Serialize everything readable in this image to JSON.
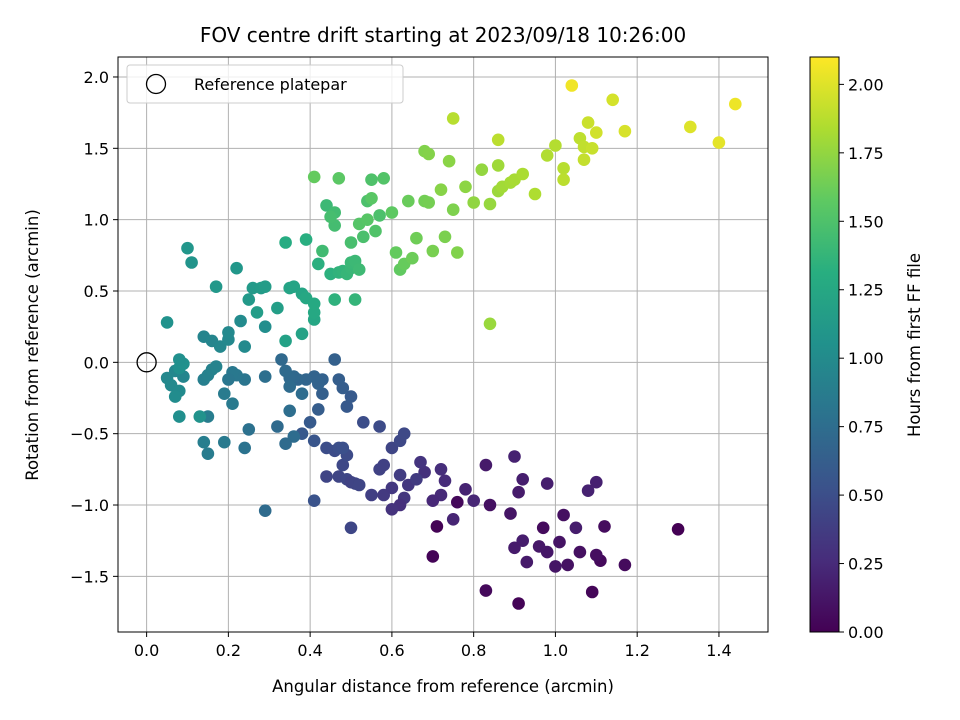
{
  "chart_data": {
    "type": "scatter",
    "title": "FOV centre drift starting at 2023/09/18 10:26:00",
    "xlabel": "Angular distance from reference (arcmin)",
    "ylabel": "Rotation from reference (arcmin)",
    "xlim": [
      -0.07,
      1.52
    ],
    "ylim": [
      -1.89,
      2.14
    ],
    "x_ticks": [
      0.0,
      0.2,
      0.4,
      0.6,
      0.8,
      1.0,
      1.2,
      1.4
    ],
    "x_tick_labels": [
      "0.0",
      "0.2",
      "0.4",
      "0.6",
      "0.8",
      "1.0",
      "1.2",
      "1.4"
    ],
    "y_ticks": [
      -1.5,
      -1.0,
      -0.5,
      0.0,
      0.5,
      1.0,
      1.5,
      2.0
    ],
    "y_tick_labels": [
      "−1.5",
      "−1.0",
      "−0.5",
      "0.0",
      "0.5",
      "1.0",
      "1.5",
      "2.0"
    ],
    "grid": true,
    "legend": {
      "position": "top-left",
      "entries": [
        "Reference platepar"
      ]
    },
    "reference_point": {
      "x": 0.0,
      "y": 0.0
    },
    "colorbar": {
      "label": "Hours from first FF file",
      "colormap": "viridis",
      "range": [
        0.0,
        2.1
      ],
      "ticks": [
        0.0,
        0.25,
        0.5,
        0.75,
        1.0,
        1.25,
        1.5,
        1.75,
        2.0
      ],
      "tick_labels": [
        "0.00",
        "0.25",
        "0.50",
        "0.75",
        "1.00",
        "1.25",
        "1.50",
        "1.75",
        "2.00"
      ]
    },
    "points": [
      [
        1.3,
        -1.17,
        0.0
      ],
      [
        0.91,
        -1.69,
        0.02
      ],
      [
        1.09,
        -1.61,
        0.03
      ],
      [
        0.83,
        -1.6,
        0.05
      ],
      [
        0.7,
        -1.36,
        0.02
      ],
      [
        0.71,
        -1.15,
        0.01
      ],
      [
        0.76,
        -0.98,
        0.04
      ],
      [
        1.17,
        -1.42,
        0.06
      ],
      [
        1.11,
        -1.39,
        0.05
      ],
      [
        1.1,
        -1.35,
        0.08
      ],
      [
        1.12,
        -1.15,
        0.07
      ],
      [
        1.06,
        -1.33,
        0.09
      ],
      [
        1.03,
        -1.42,
        0.1
      ],
      [
        1.0,
        -1.43,
        0.12
      ],
      [
        0.97,
        -1.16,
        0.06
      ],
      [
        1.01,
        -1.26,
        0.11
      ],
      [
        1.02,
        -1.07,
        0.09
      ],
      [
        0.98,
        -1.33,
        0.13
      ],
      [
        0.96,
        -1.29,
        0.14
      ],
      [
        0.93,
        -1.4,
        0.15
      ],
      [
        0.92,
        -1.25,
        0.17
      ],
      [
        0.9,
        -1.3,
        0.16
      ],
      [
        0.89,
        -1.06,
        0.12
      ],
      [
        0.84,
        -1.0,
        0.1
      ],
      [
        0.83,
        -0.72,
        0.15
      ],
      [
        0.91,
        -0.91,
        0.16
      ],
      [
        0.92,
        -0.82,
        0.18
      ],
      [
        0.9,
        -0.66,
        0.2
      ],
      [
        0.98,
        -0.85,
        0.18
      ],
      [
        1.08,
        -0.9,
        0.2
      ],
      [
        1.1,
        -0.84,
        0.19
      ],
      [
        1.05,
        -1.16,
        0.17
      ],
      [
        0.78,
        -0.89,
        0.21
      ],
      [
        0.8,
        -0.97,
        0.23
      ],
      [
        0.75,
        -1.1,
        0.22
      ],
      [
        0.72,
        -0.93,
        0.25
      ],
      [
        0.72,
        -0.75,
        0.28
      ],
      [
        0.73,
        -0.83,
        0.26
      ],
      [
        0.7,
        -0.97,
        0.24
      ],
      [
        0.68,
        -0.77,
        0.3
      ],
      [
        0.67,
        -0.7,
        0.32
      ],
      [
        0.64,
        -0.86,
        0.34
      ],
      [
        0.63,
        -0.95,
        0.33
      ],
      [
        0.62,
        -1.0,
        0.29
      ],
      [
        0.6,
        -1.03,
        0.31
      ],
      [
        0.58,
        -0.93,
        0.36
      ],
      [
        0.6,
        -0.88,
        0.35
      ],
      [
        0.66,
        -0.82,
        0.37
      ],
      [
        0.62,
        -0.79,
        0.38
      ],
      [
        0.55,
        -0.93,
        0.4
      ],
      [
        0.57,
        -0.75,
        0.42
      ],
      [
        0.58,
        -0.72,
        0.41
      ],
      [
        0.6,
        -0.6,
        0.44
      ],
      [
        0.62,
        -0.55,
        0.46
      ],
      [
        0.63,
        -0.5,
        0.47
      ],
      [
        0.57,
        -0.45,
        0.48
      ],
      [
        0.53,
        -0.42,
        0.5
      ],
      [
        0.5,
        -1.16,
        0.45
      ],
      [
        0.44,
        -0.8,
        0.43
      ],
      [
        0.47,
        -0.8,
        0.44
      ],
      [
        0.49,
        -0.82,
        0.45
      ],
      [
        0.5,
        -0.84,
        0.42
      ],
      [
        0.51,
        -0.85,
        0.43
      ],
      [
        0.52,
        -0.86,
        0.44
      ],
      [
        0.48,
        -0.72,
        0.46
      ],
      [
        0.49,
        -0.65,
        0.48
      ],
      [
        0.46,
        -0.62,
        0.49
      ],
      [
        0.44,
        -0.6,
        0.5
      ],
      [
        0.47,
        -0.6,
        0.51
      ],
      [
        0.48,
        -0.6,
        0.52
      ],
      [
        0.41,
        -0.55,
        0.56
      ],
      [
        0.41,
        -0.97,
        0.54
      ],
      [
        0.38,
        -0.5,
        0.58
      ],
      [
        0.4,
        -0.42,
        0.6
      ],
      [
        0.42,
        -0.33,
        0.62
      ],
      [
        0.43,
        -0.22,
        0.64
      ],
      [
        0.49,
        -0.31,
        0.59
      ],
      [
        0.5,
        -0.24,
        0.6
      ],
      [
        0.48,
        -0.18,
        0.62
      ],
      [
        0.47,
        -0.12,
        0.63
      ],
      [
        0.46,
        0.02,
        0.65
      ],
      [
        0.43,
        -0.12,
        0.66
      ],
      [
        0.42,
        -0.15,
        0.67
      ],
      [
        0.41,
        -0.1,
        0.68
      ],
      [
        0.39,
        -0.12,
        0.69
      ],
      [
        0.37,
        -0.12,
        0.7
      ],
      [
        0.36,
        -0.1,
        0.71
      ],
      [
        0.35,
        -0.11,
        0.72
      ],
      [
        0.34,
        -0.06,
        0.73
      ],
      [
        0.33,
        0.02,
        0.72
      ],
      [
        0.35,
        -0.17,
        0.74
      ],
      [
        0.38,
        -0.22,
        0.75
      ],
      [
        0.35,
        -0.34,
        0.76
      ],
      [
        0.36,
        -0.52,
        0.75
      ],
      [
        0.34,
        -0.57,
        0.74
      ],
      [
        0.32,
        -0.45,
        0.73
      ],
      [
        0.29,
        -0.1,
        0.77
      ],
      [
        0.29,
        -1.04,
        0.74
      ],
      [
        0.25,
        -0.47,
        0.79
      ],
      [
        0.24,
        -0.6,
        0.8
      ],
      [
        0.24,
        -0.12,
        0.82
      ],
      [
        0.22,
        -0.09,
        0.84
      ],
      [
        0.21,
        -0.07,
        0.85
      ],
      [
        0.2,
        -0.12,
        0.83
      ],
      [
        0.21,
        -0.29,
        0.86
      ],
      [
        0.19,
        -0.22,
        0.87
      ],
      [
        0.19,
        -0.56,
        0.86
      ],
      [
        0.15,
        -0.64,
        0.88
      ],
      [
        0.14,
        -0.56,
        0.9
      ],
      [
        0.15,
        -0.38,
        0.89
      ],
      [
        0.14,
        -0.12,
        0.91
      ],
      [
        0.15,
        -0.09,
        0.92
      ],
      [
        0.16,
        -0.05,
        0.93
      ],
      [
        0.17,
        -0.03,
        0.94
      ],
      [
        0.14,
        0.18,
        0.95
      ],
      [
        0.16,
        0.15,
        0.96
      ],
      [
        0.18,
        0.11,
        0.97
      ],
      [
        0.2,
        0.16,
        0.98
      ],
      [
        0.2,
        0.21,
        0.99
      ],
      [
        0.24,
        0.11,
        1.0
      ],
      [
        0.23,
        0.29,
        1.01
      ],
      [
        0.29,
        0.25,
        1.03
      ],
      [
        0.09,
        -0.1,
        0.96
      ],
      [
        0.07,
        -0.06,
        0.97
      ],
      [
        0.05,
        -0.11,
        0.98
      ],
      [
        0.06,
        -0.16,
        0.99
      ],
      [
        0.08,
        -0.2,
        1.0
      ],
      [
        0.07,
        -0.24,
        1.02
      ],
      [
        0.08,
        -0.38,
        1.04
      ],
      [
        0.08,
        -0.04,
        1.05
      ],
      [
        0.09,
        -0.01,
        1.06
      ],
      [
        0.08,
        0.02,
        1.05
      ],
      [
        0.05,
        0.28,
        1.07
      ],
      [
        0.13,
        -0.38,
        1.08
      ],
      [
        0.1,
        0.8,
        1.1
      ],
      [
        0.11,
        0.7,
        1.09
      ],
      [
        0.17,
        0.53,
        1.12
      ],
      [
        0.22,
        0.66,
        1.11
      ],
      [
        0.25,
        0.44,
        1.13
      ],
      [
        0.26,
        0.52,
        1.14
      ],
      [
        0.28,
        0.52,
        1.15
      ],
      [
        0.29,
        0.53,
        1.16
      ],
      [
        0.27,
        0.35,
        1.17
      ],
      [
        0.32,
        0.38,
        1.18
      ],
      [
        0.34,
        0.15,
        1.2
      ],
      [
        0.38,
        0.2,
        1.21
      ],
      [
        0.35,
        0.52,
        1.22
      ],
      [
        0.36,
        0.53,
        1.23
      ],
      [
        0.38,
        0.48,
        1.24
      ],
      [
        0.39,
        0.45,
        1.26
      ],
      [
        0.41,
        0.3,
        1.25
      ],
      [
        0.41,
        0.35,
        1.27
      ],
      [
        0.41,
        0.41,
        1.28
      ],
      [
        0.34,
        0.84,
        1.3
      ],
      [
        0.39,
        0.86,
        1.32
      ],
      [
        0.42,
        0.69,
        1.33
      ],
      [
        0.45,
        0.62,
        1.34
      ],
      [
        0.46,
        0.44,
        1.35
      ],
      [
        0.47,
        0.63,
        1.36
      ],
      [
        0.48,
        0.64,
        1.37
      ],
      [
        0.51,
        0.44,
        1.38
      ],
      [
        0.49,
        0.62,
        1.39
      ],
      [
        0.5,
        0.66,
        1.4
      ],
      [
        0.5,
        0.7,
        1.41
      ],
      [
        0.51,
        0.71,
        1.42
      ],
      [
        0.52,
        0.65,
        1.43
      ],
      [
        0.43,
        0.78,
        1.44
      ],
      [
        0.44,
        1.1,
        1.42
      ],
      [
        0.46,
        1.05,
        1.45
      ],
      [
        0.46,
        0.96,
        1.46
      ],
      [
        0.45,
        1.02,
        1.47
      ],
      [
        0.5,
        0.84,
        1.48
      ],
      [
        0.53,
        0.88,
        1.49
      ],
      [
        0.54,
        1.13,
        1.5
      ],
      [
        0.55,
        1.28,
        1.51
      ],
      [
        0.56,
        0.92,
        1.52
      ],
      [
        0.57,
        1.03,
        1.5
      ],
      [
        0.58,
        1.29,
        1.53
      ],
      [
        0.52,
        0.97,
        1.54
      ],
      [
        0.54,
        1.0,
        1.55
      ],
      [
        0.55,
        1.15,
        1.56
      ],
      [
        0.47,
        1.29,
        1.57
      ],
      [
        0.41,
        1.3,
        1.6
      ],
      [
        0.6,
        1.05,
        1.58
      ],
      [
        0.62,
        0.65,
        1.59
      ],
      [
        0.61,
        0.77,
        1.6
      ],
      [
        0.63,
        0.69,
        1.61
      ],
      [
        0.64,
        1.13,
        1.62
      ],
      [
        0.65,
        0.73,
        1.63
      ],
      [
        0.66,
        0.87,
        1.64
      ],
      [
        0.68,
        1.13,
        1.65
      ],
      [
        0.69,
        1.12,
        1.66
      ],
      [
        0.7,
        0.78,
        1.67
      ],
      [
        0.73,
        0.88,
        1.68
      ],
      [
        0.75,
        1.07,
        1.69
      ],
      [
        0.76,
        0.77,
        1.7
      ],
      [
        0.68,
        1.48,
        1.7
      ],
      [
        0.69,
        1.46,
        1.71
      ],
      [
        0.72,
        1.21,
        1.72
      ],
      [
        0.74,
        1.41,
        1.73
      ],
      [
        0.78,
        1.23,
        1.74
      ],
      [
        0.8,
        1.12,
        1.75
      ],
      [
        0.82,
        1.35,
        1.76
      ],
      [
        0.84,
        1.11,
        1.77
      ],
      [
        0.84,
        0.27,
        1.78
      ],
      [
        0.86,
        1.2,
        1.79
      ],
      [
        0.86,
        1.38,
        1.8
      ],
      [
        0.87,
        1.23,
        1.81
      ],
      [
        0.89,
        1.26,
        1.82
      ],
      [
        0.9,
        1.28,
        1.83
      ],
      [
        0.92,
        1.32,
        1.84
      ],
      [
        0.95,
        1.18,
        1.85
      ],
      [
        0.98,
        1.45,
        1.86
      ],
      [
        1.0,
        1.52,
        1.87
      ],
      [
        1.02,
        1.36,
        1.88
      ],
      [
        1.02,
        1.28,
        1.89
      ],
      [
        1.06,
        1.57,
        1.9
      ],
      [
        1.07,
        1.51,
        1.91
      ],
      [
        1.07,
        1.42,
        1.92
      ],
      [
        1.09,
        1.5,
        1.93
      ],
      [
        0.75,
        1.71,
        1.88
      ],
      [
        0.86,
        1.56,
        1.89
      ],
      [
        1.08,
        1.68,
        1.94
      ],
      [
        1.1,
        1.61,
        1.96
      ],
      [
        1.14,
        1.84,
        1.97
      ],
      [
        1.17,
        1.62,
        1.98
      ],
      [
        1.33,
        1.65,
        2.0
      ],
      [
        1.4,
        1.54,
        2.02
      ],
      [
        1.44,
        1.81,
        2.05
      ],
      [
        1.04,
        1.94,
        2.06
      ]
    ]
  }
}
